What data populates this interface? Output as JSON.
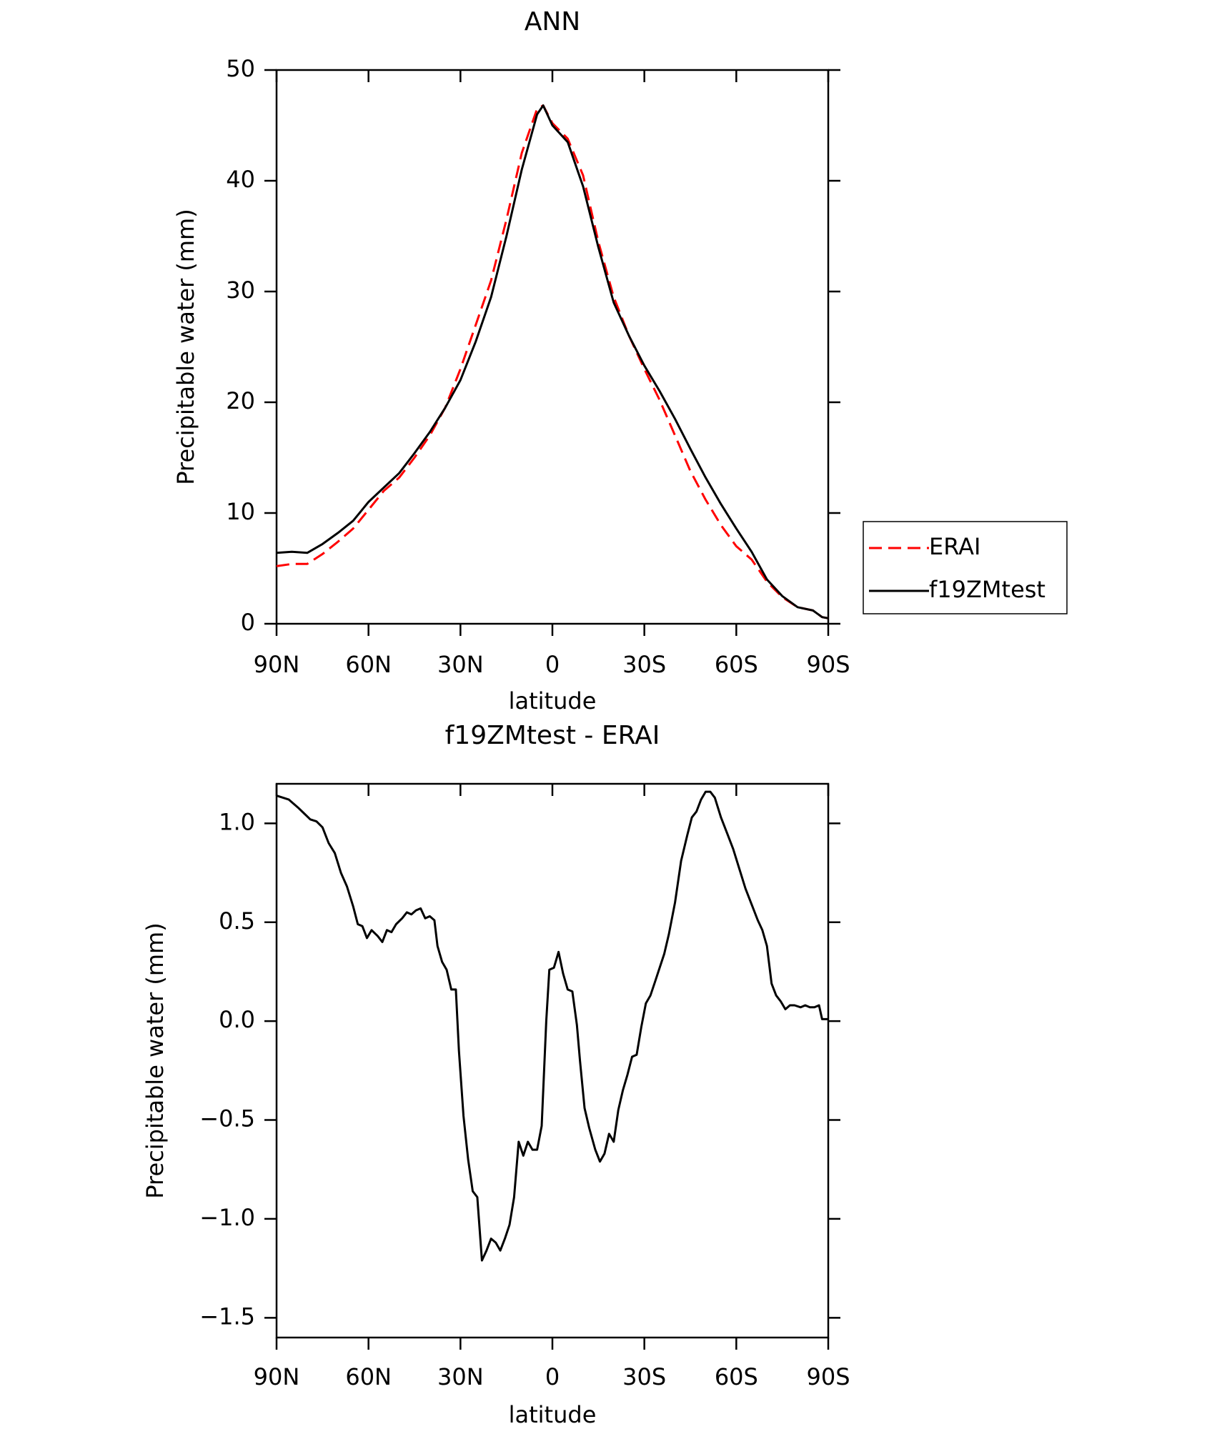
{
  "chart_data": [
    {
      "type": "line",
      "title": "ANN",
      "xlabel": "latitude",
      "ylabel": "Precipitable water (mm)",
      "xlim": [
        90,
        -90
      ],
      "ylim": [
        0,
        50
      ],
      "xticks": [
        {
          "value": 90,
          "label": "90N"
        },
        {
          "value": 60,
          "label": "60N"
        },
        {
          "value": 30,
          "label": "30N"
        },
        0,
        {
          "value": -30,
          "label": "30S"
        },
        {
          "value": -60,
          "label": "60S"
        },
        {
          "value": -90,
          "label": "90S"
        }
      ],
      "yticks": [
        0,
        10,
        20,
        30,
        40,
        50
      ],
      "legend": "right",
      "series": [
        {
          "name": "ERAI",
          "color": "#ff0000",
          "dash": true,
          "x": [
            90,
            85,
            80,
            75,
            70,
            65,
            60,
            55,
            50,
            45,
            40,
            35,
            30,
            25,
            20,
            15,
            10,
            5,
            3,
            0,
            -5,
            -10,
            -15,
            -20,
            -25,
            -30,
            -35,
            -40,
            -45,
            -50,
            -55,
            -60,
            -65,
            -70,
            -75,
            -80,
            -85,
            -88,
            -90
          ],
          "values": [
            5.2,
            5.4,
            5.4,
            6.3,
            7.4,
            8.6,
            10.3,
            12,
            13.2,
            15,
            17,
            19.5,
            23,
            27,
            31,
            36.5,
            42.5,
            46.5,
            46.8,
            45.2,
            43.8,
            40.5,
            34.5,
            29.5,
            26,
            23,
            20.2,
            17,
            13.8,
            11.2,
            8.9,
            7,
            5.8,
            3.8,
            2.4,
            1.5,
            1.2,
            0.6,
            0.5
          ]
        },
        {
          "name": "f19ZMtest",
          "color": "#000000",
          "dash": false,
          "x": [
            90,
            85,
            80,
            75,
            70,
            65,
            60,
            55,
            50,
            45,
            40,
            35,
            30,
            25,
            20,
            15,
            10,
            5,
            3,
            0,
            -5,
            -10,
            -15,
            -20,
            -25,
            -30,
            -35,
            -40,
            -45,
            -50,
            -55,
            -60,
            -65,
            -70,
            -75,
            -80,
            -85,
            -88,
            -90
          ],
          "values": [
            6.4,
            6.5,
            6.4,
            7.2,
            8.2,
            9.3,
            11,
            12.3,
            13.6,
            15.4,
            17.3,
            19.5,
            22,
            25.5,
            29.5,
            35,
            41,
            46,
            46.8,
            45,
            43.5,
            39.5,
            34,
            29,
            26,
            23.3,
            21,
            18.5,
            15.8,
            13.2,
            10.8,
            8.6,
            6.5,
            4,
            2.5,
            1.5,
            1.2,
            0.6,
            0.5
          ]
        }
      ]
    },
    {
      "type": "line",
      "title": "f19ZMtest - ERAI",
      "xlabel": "latitude",
      "ylabel": "Precipitable water (mm)",
      "xlim": [
        90,
        -90
      ],
      "ylim": [
        -1.6,
        1.2
      ],
      "xticks": [
        {
          "value": 90,
          "label": "90N"
        },
        {
          "value": 60,
          "label": "60N"
        },
        {
          "value": 30,
          "label": "30N"
        },
        0,
        {
          "value": -30,
          "label": "30S"
        },
        {
          "value": -60,
          "label": "60S"
        },
        {
          "value": -90,
          "label": "90S"
        }
      ],
      "yticks": [
        {
          "value": 1,
          "label": "1.0"
        },
        0.5,
        {
          "value": 0,
          "label": "0.0"
        },
        {
          "value": -0.5,
          "label": "−0.5"
        },
        {
          "value": -1,
          "label": "−1.0"
        },
        {
          "value": -1.5,
          "label": "−1.5"
        }
      ],
      "series": [
        {
          "color": "#000000",
          "dash": false,
          "x": [
            90,
            86,
            83,
            81,
            79,
            77,
            75,
            73,
            71,
            69,
            67,
            65,
            63.5,
            62,
            60.5,
            59,
            57,
            55.5,
            54,
            52.5,
            51,
            49,
            47.5,
            46,
            44.5,
            43,
            41.5,
            40,
            38.5,
            37.5,
            36,
            34.5,
            33,
            31.5,
            30.5,
            29,
            27.5,
            26,
            24.5,
            23,
            21.5,
            20,
            18.5,
            17,
            15.5,
            14,
            12.5,
            11,
            9.5,
            8,
            6.5,
            5,
            3.5,
            2,
            1,
            -0.5,
            -2,
            -3.5,
            -5,
            -6.5,
            -8,
            -9,
            -10.5,
            -12,
            -14,
            -15.5,
            -17,
            -18.5,
            -20,
            -21.5,
            -23,
            -24.5,
            -26,
            -27.5,
            -29,
            -30.5,
            -32,
            -33.5,
            -35,
            -36.5,
            -38,
            -40,
            -42,
            -44,
            -45.5,
            -47,
            -48.5,
            -50,
            -51.5,
            -53,
            -55,
            -57,
            -59,
            -61,
            -63,
            -65,
            -67,
            -68.5,
            -70,
            -71.5,
            -73,
            -74.5,
            -76,
            -77.5,
            -79,
            -81,
            -82.5,
            -84,
            -85.5,
            -87,
            -88,
            -90
          ],
          "values": [
            1.14,
            1.12,
            1.08,
            1.05,
            1.02,
            1.01,
            0.98,
            0.9,
            0.85,
            0.75,
            0.68,
            0.58,
            0.49,
            0.48,
            0.42,
            0.46,
            0.43,
            0.4,
            0.46,
            0.45,
            0.49,
            0.52,
            0.55,
            0.54,
            0.56,
            0.57,
            0.52,
            0.53,
            0.51,
            0.38,
            0.3,
            0.26,
            0.16,
            0.16,
            -0.15,
            -0.48,
            -0.7,
            -0.86,
            -0.89,
            -1.21,
            -1.16,
            -1.1,
            -1.12,
            -1.16,
            -1.1,
            -1.03,
            -0.89,
            -0.61,
            -0.68,
            -0.61,
            -0.65,
            -0.65,
            -0.53,
            0,
            0.26,
            0.27,
            0.35,
            0.24,
            0.16,
            0.15,
            -0.02,
            -0.2,
            -0.44,
            -0.54,
            -0.65,
            -0.71,
            -0.67,
            -0.57,
            -0.61,
            -0.45,
            -0.35,
            -0.27,
            -0.18,
            -0.17,
            -0.03,
            0.09,
            0.13,
            0.2,
            0.27,
            0.34,
            0.44,
            0.6,
            0.81,
            0.94,
            1.03,
            1.06,
            1.12,
            1.16,
            1.16,
            1.13,
            1.03,
            0.95,
            0.87,
            0.77,
            0.67,
            0.59,
            0.51,
            0.46,
            0.38,
            0.19,
            0.13,
            0.1,
            0.06,
            0.08,
            0.08,
            0.07,
            0.08,
            0.07,
            0.07,
            0.08,
            0.01,
            0.01
          ]
        }
      ]
    }
  ]
}
